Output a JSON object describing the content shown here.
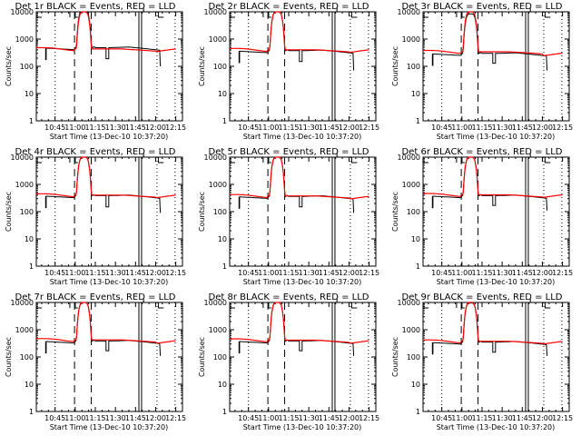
{
  "chart_data": [
    {
      "type": "line",
      "title": "Det 1r BLACK = Events, RED = LLD",
      "xlabel": "Start Time (13-Dec-10 10:37:20)",
      "ylabel": "Counts/sec",
      "yscale": "log",
      "ylim": [
        1,
        10000
      ],
      "xlim_minutes_after_10": [
        31,
        140
      ],
      "xticks": [
        {
          "t": 45,
          "label": "10:45"
        },
        {
          "t": 60,
          "label": "11:00"
        },
        {
          "t": 75,
          "label": "11:15"
        },
        {
          "t": 90,
          "label": "11:30"
        },
        {
          "t": 105,
          "label": "11:45"
        },
        {
          "t": 120,
          "label": "12:00"
        },
        {
          "t": 135,
          "label": "12:15"
        }
      ],
      "yticks": [
        {
          "v": 1,
          "label": "1"
        },
        {
          "v": 10,
          "label": "10"
        },
        {
          "v": 100,
          "label": "100"
        },
        {
          "v": 1000,
          "label": "1000"
        },
        {
          "v": 10000,
          "label": "10000"
        }
      ],
      "series": [
        {
          "name": "Events",
          "color": "#000000",
          "x": [
            31,
            39,
            39,
            40,
            40,
            48,
            48,
            49,
            56,
            57,
            57,
            59,
            59,
            60,
            60,
            62,
            78,
            79,
            79,
            85,
            85,
            87,
            87,
            88,
            88,
            106,
            107,
            108,
            125,
            125,
            126,
            127
          ],
          "y": [
            440,
            440,
            null,
            null,
            null,
            null,
            null,
            null,
            null,
            null,
            null,
            null,
            null,
            null,
            null,
            null,
            null,
            null,
            null,
            null,
            null,
            null,
            null,
            null,
            null,
            null,
            null,
            null,
            null,
            null,
            null,
            null
          ]
        },
        {
          "name": "LLD",
          "color": "#ff0000"
        }
      ],
      "events": {
        "x": [
          31,
          38,
          38,
          38.3,
          38.3,
          40,
          43,
          50,
          55,
          57,
          60,
          61,
          62,
          63,
          64,
          65,
          66,
          67,
          68,
          69,
          70,
          71,
          72,
          73,
          74,
          75,
          76,
          77,
          78,
          79,
          79,
          83,
          83,
          84,
          84,
          85,
          86,
          90,
          95,
          100,
          105,
          110,
          115,
          120,
          123,
          123,
          125,
          125,
          126
        ],
        "y": [
          450,
          450,
          180,
          180,
          450,
          430,
          400,
          390,
          370,
          360,
          380,
          1300,
          3000,
          6000,
          10000,
          10000,
          10000,
          10000,
          10000,
          10000,
          8000,
          4000,
          1500,
          600,
          420,
          400,
          390,
          390,
          390,
          390,
          390,
          390,
          190,
          190,
          390,
          390,
          390,
          410,
          420,
          400,
          360,
          340,
          330,
          330,
          320,
          100,
          100,
          null,
          null
        ]
      },
      "lld": {
        "x": [
          31,
          36,
          40,
          45,
          50,
          55,
          57,
          59,
          60,
          61,
          62,
          63,
          64,
          65,
          66,
          67,
          68,
          69,
          70,
          71,
          72,
          73,
          74,
          75,
          76,
          80,
          85,
          90,
          95,
          100,
          105,
          110,
          115,
          120,
          125,
          130,
          135
        ],
        "y": [
          450,
          510,
          500,
          490,
          440,
          400,
          390,
          390,
          400,
          1400,
          3500,
          7000,
          10000,
          10000,
          10000,
          10000,
          10000,
          10000,
          10000,
          10000,
          3000,
          900,
          460,
          420,
          410,
          410,
          410,
          430,
          440,
          420,
          380,
          360,
          350,
          340,
          340,
          380,
          430
        ]
      },
      "vlines": [
        {
          "t": 45,
          "style": "dotted"
        },
        {
          "t": 59.5,
          "style": "dashed"
        },
        {
          "t": 72,
          "style": "dashed"
        },
        {
          "t": 107.5,
          "style": "solid"
        },
        {
          "t": 109.5,
          "style": "solid"
        },
        {
          "t": 121,
          "style": "dotted"
        },
        {
          "t": 134.5,
          "style": "dotted"
        }
      ]
    }
  ],
  "panels": [
    {
      "det": "Det 1r",
      "base": 440,
      "lld_base": 480,
      "dip_x": 84,
      "dip": 190,
      "end_drop": 100,
      "lld_end": 430,
      "events_scale": 1.0
    },
    {
      "det": "Det 2r",
      "base": 340,
      "lld_base": 450,
      "dip_x": 84,
      "dip": 150,
      "end_drop": 70,
      "lld_end": 400,
      "events_scale": 0.85
    },
    {
      "det": "Det 3r",
      "base": 270,
      "lld_base": 380,
      "dip_x": 84,
      "dip": 130,
      "end_drop": 70,
      "lld_end": 300,
      "events_scale": 0.7
    },
    {
      "det": "Det 4r",
      "base": 350,
      "lld_base": 450,
      "dip_x": 84,
      "dip": 150,
      "end_drop": 90,
      "lld_end": 400,
      "events_scale": 0.85
    },
    {
      "det": "Det 5r",
      "base": 330,
      "lld_base": 420,
      "dip_x": 84,
      "dip": 150,
      "end_drop": 90,
      "lld_end": 360,
      "events_scale": 0.85
    },
    {
      "det": "Det 6r",
      "base": 350,
      "lld_base": 460,
      "dip_x": 84,
      "dip": 170,
      "end_drop": 110,
      "lld_end": 410,
      "events_scale": 0.85
    },
    {
      "det": "Det 7r",
      "base": 350,
      "lld_base": 470,
      "dip_x": 84,
      "dip": 170,
      "end_drop": 110,
      "lld_end": 390,
      "events_scale": 0.85
    },
    {
      "det": "Det 8r",
      "base": 350,
      "lld_base": 460,
      "dip_x": 84,
      "dip": 170,
      "end_drop": 110,
      "lld_end": 390,
      "events_scale": 0.85
    },
    {
      "det": "Det 9r",
      "base": 320,
      "lld_base": 420,
      "dip_x": 84,
      "dip": 150,
      "end_drop": 110,
      "lld_end": 370,
      "events_scale": 0.8
    }
  ],
  "common": {
    "title_suffix": " BLACK = Events, RED = LLD",
    "xlabel": "Start Time (13-Dec-10 10:37:20)",
    "ylabel": "Counts/sec",
    "xticks": [
      "10:45",
      "11:00",
      "11:15",
      "11:30",
      "11:45",
      "12:00",
      "12:15"
    ],
    "yticks": [
      "1",
      "10",
      "100",
      "1000",
      "10000"
    ],
    "events_color": "#000000",
    "lld_color": "#ff0000"
  }
}
